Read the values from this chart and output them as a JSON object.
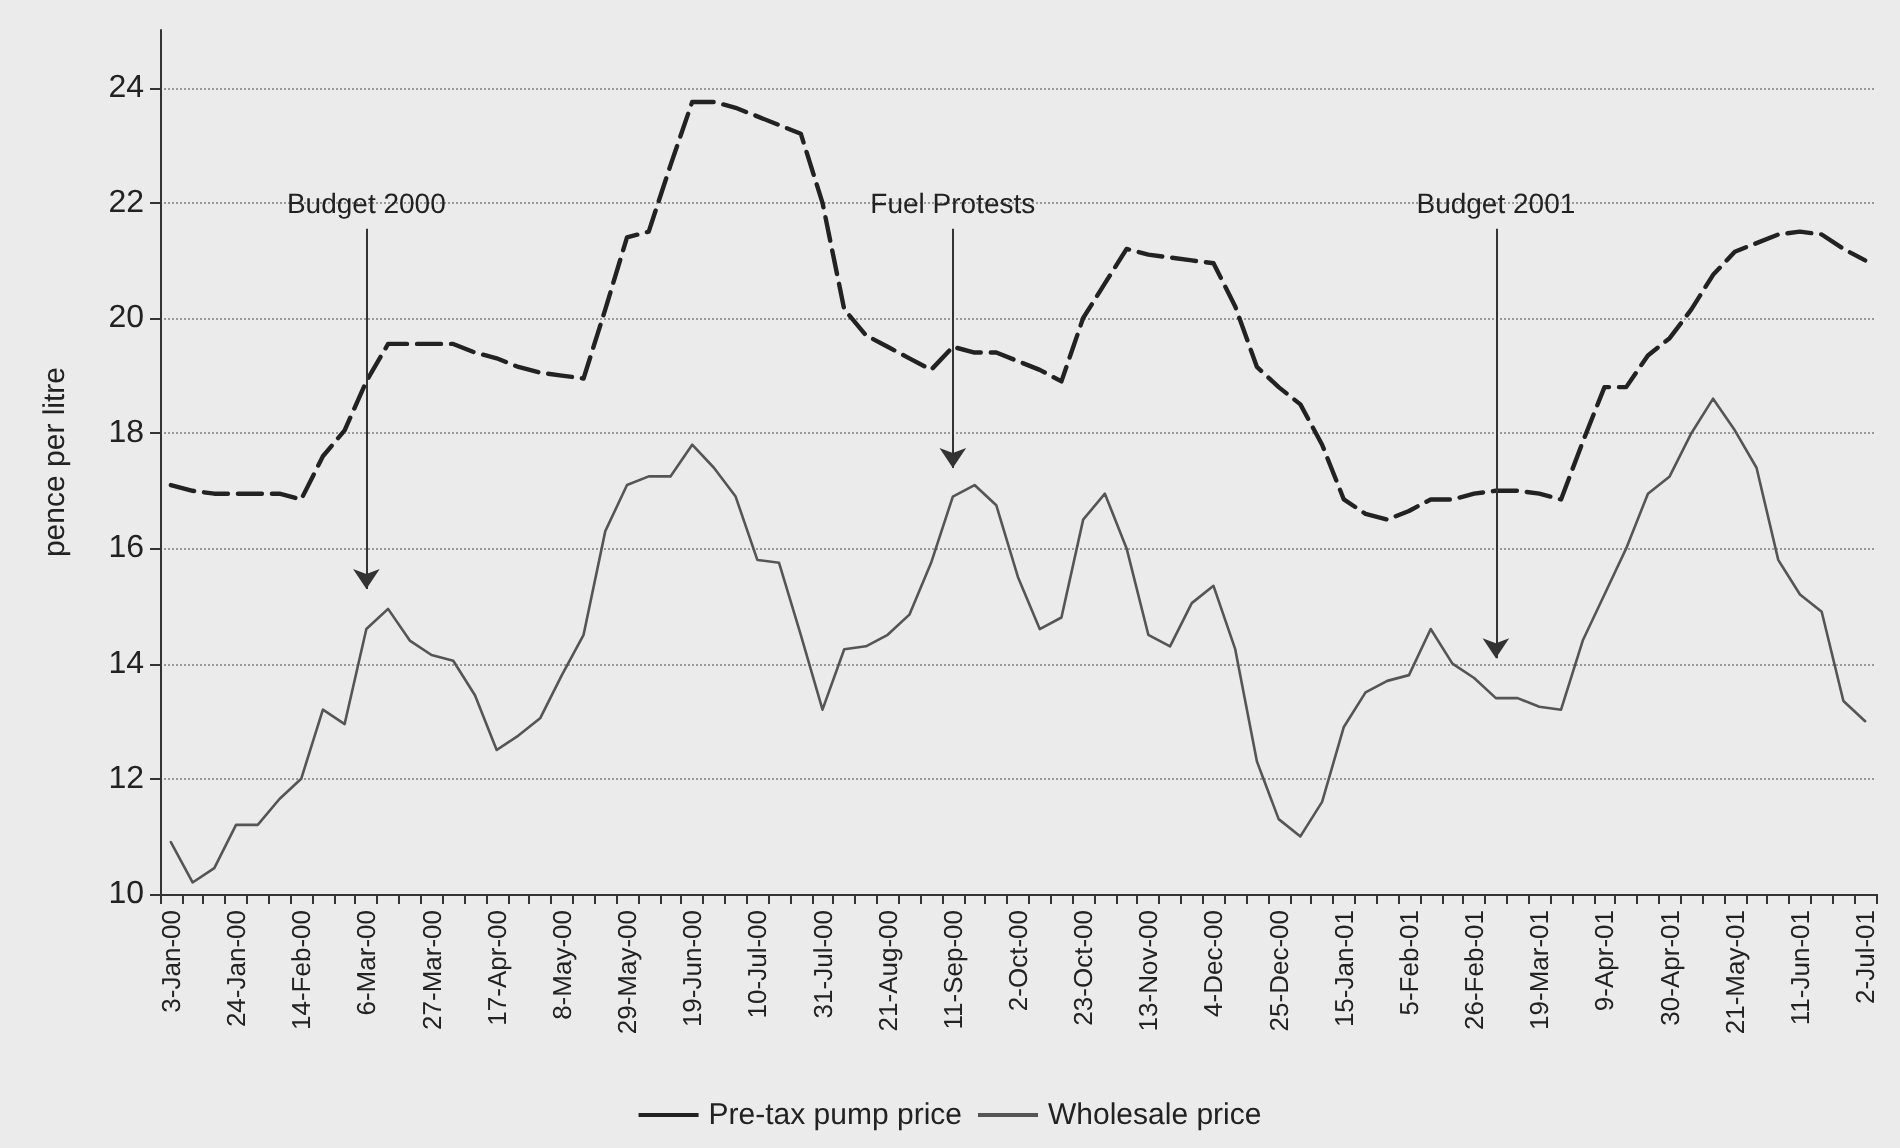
{
  "chart_data": {
    "type": "line",
    "ylabel": "pence per litre",
    "categories": [
      "3-Jan-00",
      null,
      null,
      "24-Jan-00",
      null,
      null,
      "14-Feb-00",
      null,
      null,
      "6-Mar-00",
      null,
      null,
      "27-Mar-00",
      null,
      null,
      "17-Apr-00",
      null,
      null,
      "8-May-00",
      null,
      null,
      "29-May-00",
      null,
      null,
      "19-Jun-00",
      null,
      null,
      "10-Jul-00",
      null,
      null,
      "31-Jul-00",
      null,
      null,
      "21-Aug-00",
      null,
      null,
      "11-Sep-00",
      null,
      null,
      "2-Oct-00",
      null,
      null,
      "23-Oct-00",
      null,
      null,
      "13-Nov-00",
      null,
      null,
      "4-Dec-00",
      null,
      null,
      "25-Dec-00",
      null,
      null,
      "15-Jan-01",
      null,
      null,
      "5-Feb-01",
      null,
      null,
      "26-Feb-01",
      null,
      null,
      "19-Mar-01",
      null,
      null,
      "9-Apr-01",
      null,
      null,
      "30-Apr-01",
      null,
      null,
      "21-May-01",
      null,
      null,
      "11-Jun-01",
      null,
      null,
      "2-Jul-01"
    ],
    "series": [
      {
        "name": "Pre-tax pump price",
        "color": "#222222",
        "line_style": "dashed",
        "values": [
          17.1,
          17.0,
          16.95,
          16.95,
          16.95,
          16.95,
          16.85,
          17.6,
          18.05,
          18.9,
          19.55,
          19.55,
          19.55,
          19.55,
          19.4,
          19.3,
          19.15,
          19.05,
          19.0,
          18.95,
          20.15,
          21.4,
          21.5,
          22.65,
          23.75,
          23.75,
          23.65,
          23.5,
          23.35,
          23.2,
          22.0,
          20.15,
          19.7,
          19.5,
          19.3,
          19.1,
          19.5,
          19.4,
          19.4,
          19.25,
          19.1,
          18.9,
          20.0,
          20.6,
          21.2,
          21.1,
          21.05,
          21.0,
          20.95,
          20.2,
          19.15,
          18.8,
          18.5,
          17.8,
          16.85,
          16.6,
          16.5,
          16.65,
          16.85,
          16.85,
          16.95,
          17.0,
          17.0,
          16.95,
          16.85,
          17.85,
          18.8,
          18.8,
          19.35,
          19.65,
          20.15,
          20.75,
          21.15,
          21.3,
          21.45,
          21.5,
          21.45,
          21.2,
          21.0
        ]
      },
      {
        "name": "Wholesale price",
        "color": "#555555",
        "line_style": "solid",
        "values": [
          10.9,
          10.2,
          10.45,
          11.2,
          11.2,
          11.65,
          12.0,
          13.2,
          12.95,
          14.6,
          14.95,
          14.4,
          14.15,
          14.05,
          13.45,
          12.5,
          12.75,
          13.05,
          13.8,
          14.5,
          16.3,
          17.1,
          17.25,
          17.25,
          17.8,
          17.4,
          16.9,
          15.8,
          15.75,
          14.5,
          13.2,
          14.25,
          14.3,
          14.5,
          14.85,
          15.75,
          16.9,
          17.1,
          16.75,
          15.5,
          14.6,
          14.8,
          16.5,
          16.95,
          16.0,
          14.5,
          14.3,
          15.05,
          15.35,
          14.25,
          12.3,
          11.3,
          11.0,
          11.6,
          12.9,
          13.5,
          13.7,
          13.8,
          14.6,
          14.0,
          13.75,
          13.4,
          13.4,
          13.25,
          13.2,
          14.4,
          15.2,
          16.0,
          16.95,
          17.25,
          18.0,
          18.6,
          18.05,
          17.4,
          15.8,
          15.2,
          14.9,
          13.35,
          13.0
        ]
      }
    ],
    "ylim": [
      10,
      25
    ],
    "yticks": [
      10,
      12,
      14,
      16,
      18,
      20,
      22,
      24
    ],
    "grid": "y",
    "legend": "bottom",
    "marker": "none",
    "annotations": [
      "Budget 2000",
      "Fuel Protests",
      "Budget 2001"
    ]
  }
}
